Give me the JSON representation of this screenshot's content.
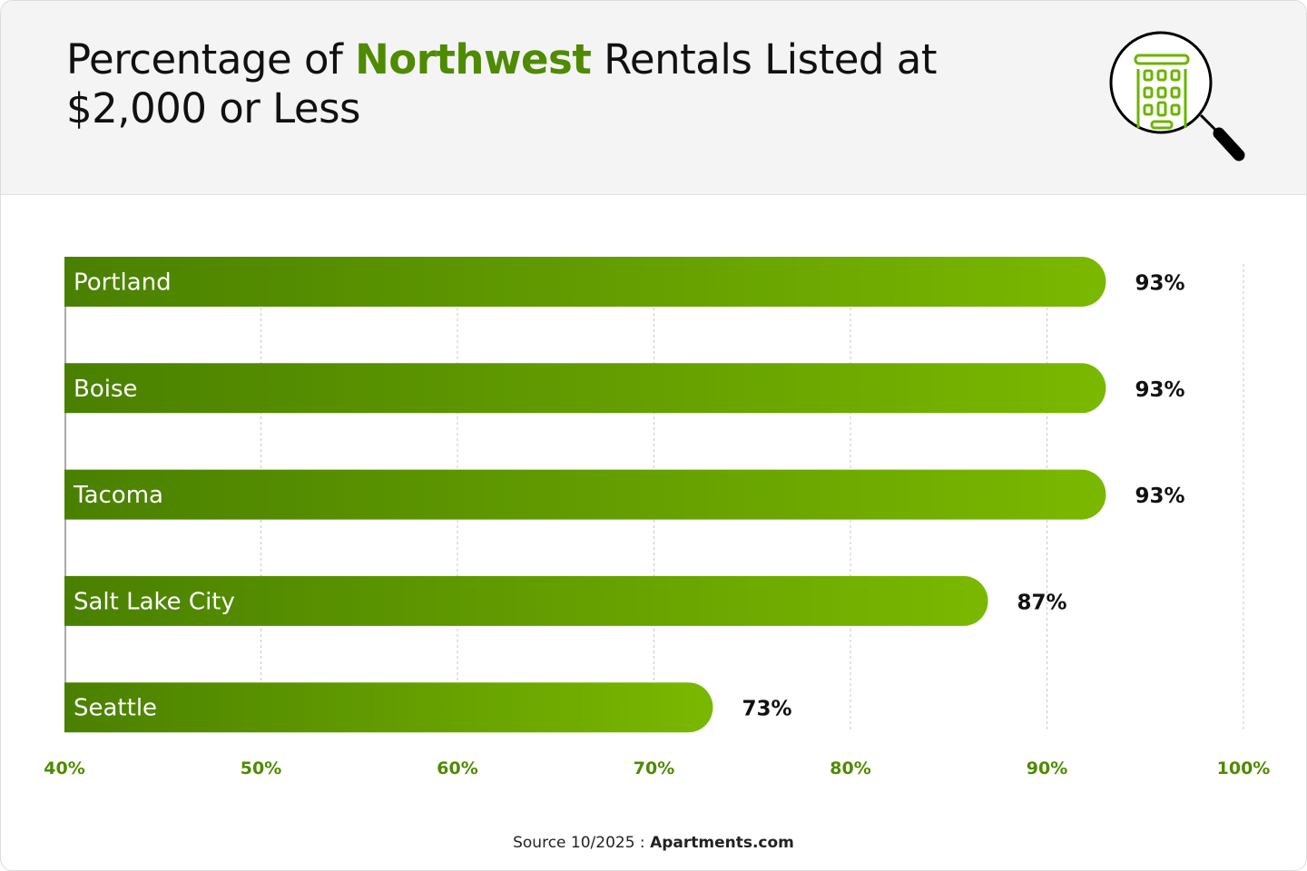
{
  "title": {
    "prefix": "Percentage of ",
    "highlight": "Northwest",
    "suffix": " Rentals Listed at $2,000 or Less"
  },
  "icon": "building-magnifier-icon",
  "colors": {
    "bar_start": "#4a8000",
    "bar_end": "#7ab800",
    "accent": "#4f8a00",
    "axis_tick": "#4f8a00"
  },
  "chart_data": {
    "type": "bar",
    "orientation": "horizontal",
    "categories": [
      "Portland",
      "Boise",
      "Tacoma",
      "Salt Lake City",
      "Seattle"
    ],
    "values": [
      93,
      93,
      93,
      87,
      73
    ],
    "data_labels": [
      "93%",
      "93%",
      "93%",
      "87%",
      "73%"
    ],
    "xlim": [
      40,
      100
    ],
    "x_ticks": [
      40,
      50,
      60,
      70,
      80,
      90,
      100
    ],
    "x_tick_labels": [
      "40%",
      "50%",
      "60%",
      "70%",
      "80%",
      "90%",
      "100%"
    ],
    "grid": "vertical dashed",
    "legend": "none"
  },
  "source": {
    "label": "Source 10/2025 : ",
    "name": "Apartments.com"
  }
}
